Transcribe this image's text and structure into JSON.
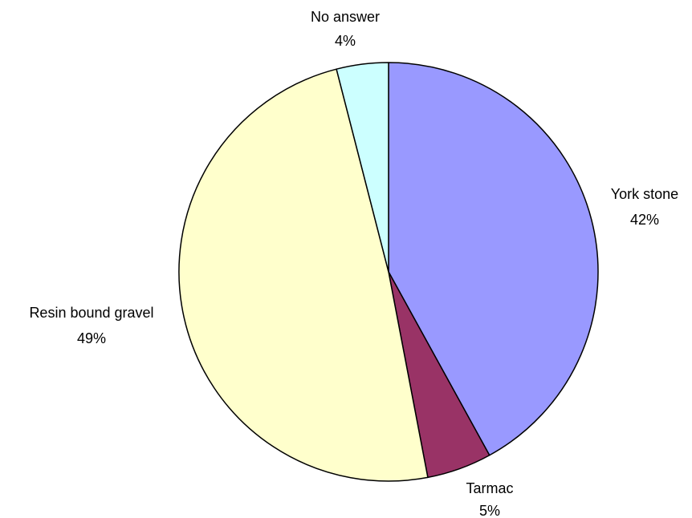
{
  "chart_data": {
    "type": "pie",
    "title": "",
    "slices": [
      {
        "label": "York stone",
        "percent_label": "42%",
        "value": 42,
        "color": "#9999ff"
      },
      {
        "label": "Tarmac",
        "percent_label": "5%",
        "value": 5,
        "color": "#993366"
      },
      {
        "label": "Resin bound gravel",
        "percent_label": "49%",
        "value": 49,
        "color": "#ffffcc"
      },
      {
        "label": "No answer",
        "percent_label": "4%",
        "value": 4,
        "color": "#ccffff"
      }
    ],
    "start": "12 o'clock",
    "direction": "clockwise",
    "legend": "none"
  }
}
